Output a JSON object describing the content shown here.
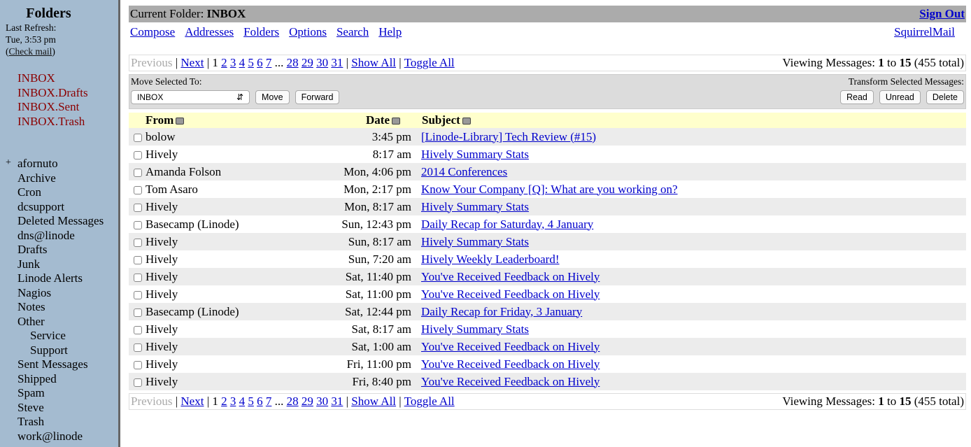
{
  "sidebar": {
    "title": "Folders",
    "last_refresh_label": "Last Refresh:",
    "last_refresh": "Tue, 3:53 pm",
    "check_mail": "Check mail",
    "special_folders": [
      "INBOX",
      "INBOX.Drafts",
      "INBOX.Sent",
      "INBOX.Trash"
    ],
    "expand_symbol": "+",
    "folders": [
      {
        "label": "afornuto"
      },
      {
        "label": "Archive"
      },
      {
        "label": "Cron"
      },
      {
        "label": "dcsupport"
      },
      {
        "label": "Deleted Messages"
      },
      {
        "label": "dns@linode"
      },
      {
        "label": "Drafts"
      },
      {
        "label": "Junk"
      },
      {
        "label": "Linode Alerts"
      },
      {
        "label": "Nagios"
      },
      {
        "label": "Notes"
      },
      {
        "label": "Other"
      },
      {
        "label": "Service",
        "sub": true
      },
      {
        "label": "Support",
        "sub": true
      },
      {
        "label": "Sent Messages"
      },
      {
        "label": "Shipped"
      },
      {
        "label": "Spam"
      },
      {
        "label": "Steve"
      },
      {
        "label": "Trash"
      },
      {
        "label": "work@linode"
      }
    ]
  },
  "header": {
    "current_folder_label": "Current Folder:",
    "current_folder": "INBOX",
    "sign_out": "Sign Out",
    "app_link": "SquirrelMail",
    "nav": [
      "Compose",
      "Addresses",
      "Folders",
      "Options",
      "Search",
      "Help"
    ]
  },
  "paginator": {
    "previous": "Previous",
    "next": "Next",
    "current_page": "1",
    "pages": [
      "2",
      "3",
      "4",
      "5",
      "6",
      "7"
    ],
    "ellipsis": "...",
    "last_pages": [
      "28",
      "29",
      "30",
      "31"
    ],
    "show_all": "Show All",
    "toggle_all": "Toggle All",
    "viewing_label": "Viewing Messages:",
    "from": "1",
    "to_label": "to",
    "to": "15",
    "total": "(455 total)"
  },
  "actions": {
    "move_label": "Move Selected To:",
    "move_target": "INBOX",
    "move": "Move",
    "forward": "Forward",
    "transform_label": "Transform Selected Messages:",
    "read": "Read",
    "unread": "Unread",
    "delete": "Delete"
  },
  "table": {
    "columns": [
      "From",
      "Date",
      "Subject"
    ],
    "rows": [
      {
        "from": "bolow",
        "date": "3:45 pm",
        "subject": "[Linode-Library] Tech Review (#15)"
      },
      {
        "from": "Hively",
        "date": "8:17 am",
        "subject": "Hively Summary Stats"
      },
      {
        "from": "Amanda Folson",
        "date": "Mon, 4:06 pm",
        "subject": "2014 Conferences"
      },
      {
        "from": "Tom Asaro",
        "date": "Mon, 2:17 pm",
        "subject": "Know Your Company [Q]: What are you working on?"
      },
      {
        "from": "Hively",
        "date": "Mon, 8:17 am",
        "subject": "Hively Summary Stats"
      },
      {
        "from": "Basecamp (Linode)",
        "date": "Sun, 12:43 pm",
        "subject": "Daily Recap for Saturday, 4 January"
      },
      {
        "from": "Hively",
        "date": "Sun, 8:17 am",
        "subject": "Hively Summary Stats"
      },
      {
        "from": "Hively",
        "date": "Sun, 7:20 am",
        "subject": "Hively Weekly Leaderboard!"
      },
      {
        "from": "Hively",
        "date": "Sat, 11:40 pm",
        "subject": "You've Received Feedback on Hively"
      },
      {
        "from": "Hively",
        "date": "Sat, 11:00 pm",
        "subject": "You've Received Feedback on Hively"
      },
      {
        "from": "Basecamp (Linode)",
        "date": "Sat, 12:44 pm",
        "subject": "Daily Recap for Friday, 3 January"
      },
      {
        "from": "Hively",
        "date": "Sat, 8:17 am",
        "subject": "Hively Summary Stats"
      },
      {
        "from": "Hively",
        "date": "Sat, 1:00 am",
        "subject": "You've Received Feedback on Hively"
      },
      {
        "from": "Hively",
        "date": "Fri, 11:00 pm",
        "subject": "You've Received Feedback on Hively"
      },
      {
        "from": "Hively",
        "date": "Fri, 8:40 pm",
        "subject": "You've Received Feedback on Hively"
      }
    ]
  }
}
